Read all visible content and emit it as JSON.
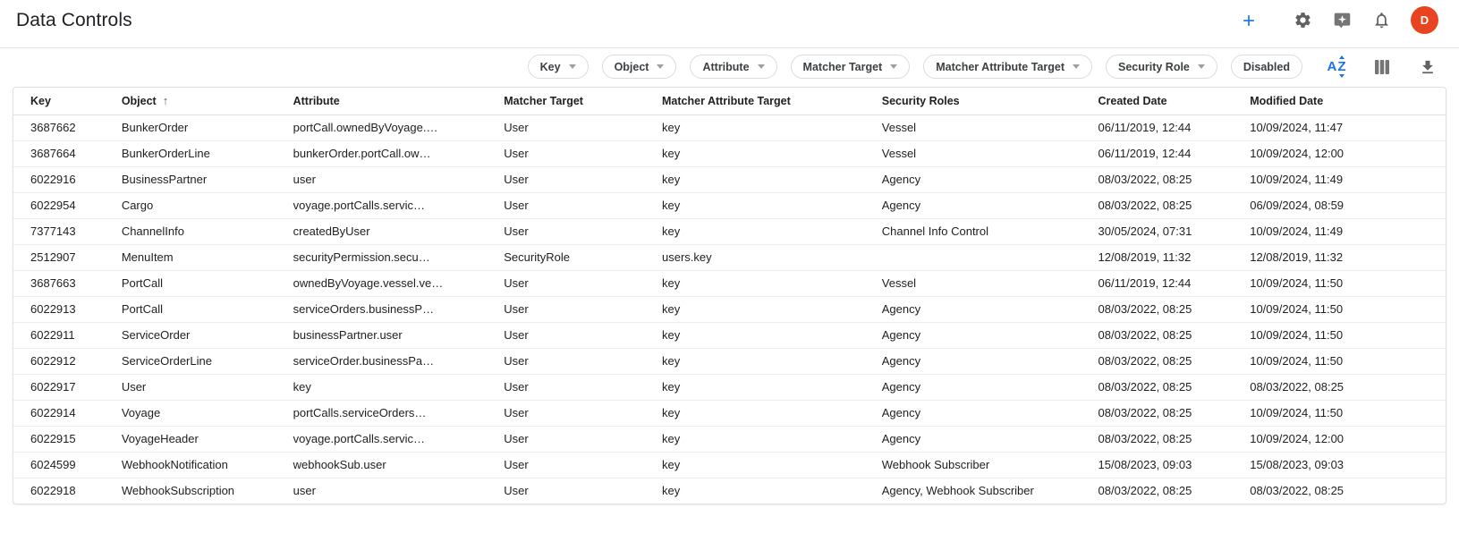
{
  "page": {
    "title": "Data Controls"
  },
  "topbar": {
    "avatar_initial": "D",
    "icons": [
      "plus-icon",
      "gear-icon",
      "sparkle-badge-icon",
      "bell-icon"
    ]
  },
  "toolbar": {
    "chips": [
      {
        "label": "Key",
        "dropdown": true
      },
      {
        "label": "Object",
        "dropdown": true
      },
      {
        "label": "Attribute",
        "dropdown": true
      },
      {
        "label": "Matcher Target",
        "dropdown": true
      },
      {
        "label": "Matcher Attribute Target",
        "dropdown": true
      },
      {
        "label": "Security Role",
        "dropdown": true
      },
      {
        "label": "Disabled",
        "dropdown": false
      }
    ],
    "icons": [
      "sort-alpha-icon",
      "columns-icon",
      "download-icon"
    ]
  },
  "table": {
    "sorted_by": "Object",
    "sort_direction": "asc",
    "sort_arrow": "↑",
    "columns": [
      "Key",
      "Object",
      "Attribute",
      "Matcher Target",
      "Matcher Attribute Target",
      "Security Roles",
      "Created Date",
      "Modified Date"
    ],
    "rows": [
      [
        "3687662",
        "BunkerOrder",
        "portCall.ownedByVoyage.…",
        "User",
        "key",
        "Vessel",
        "06/11/2019, 12:44",
        "10/09/2024, 11:47"
      ],
      [
        "3687664",
        "BunkerOrderLine",
        "bunkerOrder.portCall.ow…",
        "User",
        "key",
        "Vessel",
        "06/11/2019, 12:44",
        "10/09/2024, 12:00"
      ],
      [
        "6022916",
        "BusinessPartner",
        "user",
        "User",
        "key",
        "Agency",
        "08/03/2022, 08:25",
        "10/09/2024, 11:49"
      ],
      [
        "6022954",
        "Cargo",
        "voyage.portCalls.servic…",
        "User",
        "key",
        "Agency",
        "08/03/2022, 08:25",
        "06/09/2024, 08:59"
      ],
      [
        "7377143",
        "ChannelInfo",
        "createdByUser",
        "User",
        "key",
        "Channel Info Control",
        "30/05/2024, 07:31",
        "10/09/2024, 11:49"
      ],
      [
        "2512907",
        "MenuItem",
        "securityPermission.secu…",
        "SecurityRole",
        "users.key",
        "",
        "12/08/2019, 11:32",
        "12/08/2019, 11:32"
      ],
      [
        "3687663",
        "PortCall",
        "ownedByVoyage.vessel.ve…",
        "User",
        "key",
        "Vessel",
        "06/11/2019, 12:44",
        "10/09/2024, 11:50"
      ],
      [
        "6022913",
        "PortCall",
        "serviceOrders.businessP…",
        "User",
        "key",
        "Agency",
        "08/03/2022, 08:25",
        "10/09/2024, 11:50"
      ],
      [
        "6022911",
        "ServiceOrder",
        "businessPartner.user",
        "User",
        "key",
        "Agency",
        "08/03/2022, 08:25",
        "10/09/2024, 11:50"
      ],
      [
        "6022912",
        "ServiceOrderLine",
        "serviceOrder.businessPa…",
        "User",
        "key",
        "Agency",
        "08/03/2022, 08:25",
        "10/09/2024, 11:50"
      ],
      [
        "6022917",
        "User",
        "key",
        "User",
        "key",
        "Agency",
        "08/03/2022, 08:25",
        "08/03/2022, 08:25"
      ],
      [
        "6022914",
        "Voyage",
        "portCalls.serviceOrders…",
        "User",
        "key",
        "Agency",
        "08/03/2022, 08:25",
        "10/09/2024, 11:50"
      ],
      [
        "6022915",
        "VoyageHeader",
        "voyage.portCalls.servic…",
        "User",
        "key",
        "Agency",
        "08/03/2022, 08:25",
        "10/09/2024, 12:00"
      ],
      [
        "6024599",
        "WebhookNotification",
        "webhookSub.user",
        "User",
        "key",
        "Webhook Subscriber",
        "15/08/2023, 09:03",
        "15/08/2023, 09:03"
      ],
      [
        "6022918",
        "WebhookSubscription",
        "user",
        "User",
        "key",
        "Agency, Webhook Subscriber",
        "08/03/2022, 08:25",
        "08/03/2022, 08:25"
      ]
    ]
  },
  "colors": {
    "accent_blue": "#1a73e8",
    "icon_gray": "#616161",
    "avatar_background": "#e8441f",
    "border": "#e0e0e0",
    "text": "#202124"
  }
}
